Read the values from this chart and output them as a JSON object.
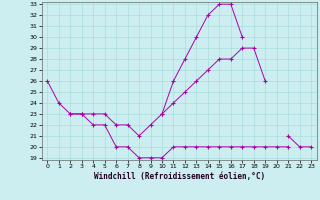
{
  "xlabel": "Windchill (Refroidissement éolien,°C)",
  "bg_color": "#cceef0",
  "grid_color": "#aadddd",
  "line_color": "#aa00aa",
  "x": [
    0,
    1,
    2,
    3,
    4,
    5,
    6,
    7,
    8,
    9,
    10,
    11,
    12,
    13,
    14,
    15,
    16,
    17,
    18,
    19,
    20,
    21,
    22,
    23
  ],
  "line1": [
    26,
    24,
    23,
    23,
    23,
    23,
    22,
    22,
    21,
    22,
    23,
    24,
    25,
    26,
    27,
    28,
    28,
    29,
    29,
    26,
    null,
    null,
    null,
    null
  ],
  "line2": [
    null,
    null,
    null,
    null,
    null,
    null,
    null,
    null,
    null,
    null,
    null,
    null,
    null,
    null,
    null,
    null,
    null,
    null,
    null,
    null,
    null,
    21,
    20,
    20
  ],
  "line3": [
    null,
    null,
    23,
    23,
    22,
    22,
    20,
    20,
    19,
    19,
    19,
    20,
    20,
    20,
    20,
    20,
    20,
    20,
    20,
    20,
    20,
    20,
    null,
    null
  ],
  "line4": [
    null,
    null,
    null,
    null,
    null,
    null,
    null,
    null,
    null,
    null,
    23,
    26,
    28,
    30,
    32,
    33,
    33,
    30,
    null,
    null,
    null,
    null,
    null,
    null
  ],
  "ylim": [
    19,
    33
  ],
  "xlim": [
    -0.5,
    23.5
  ],
  "yticks": [
    19,
    20,
    21,
    22,
    23,
    24,
    25,
    26,
    27,
    28,
    29,
    30,
    31,
    32,
    33
  ],
  "xticks": [
    0,
    1,
    2,
    3,
    4,
    5,
    6,
    7,
    8,
    9,
    10,
    11,
    12,
    13,
    14,
    15,
    16,
    17,
    18,
    19,
    20,
    21,
    22,
    23
  ],
  "tick_fontsize": 4.5,
  "xlabel_fontsize": 5.5
}
